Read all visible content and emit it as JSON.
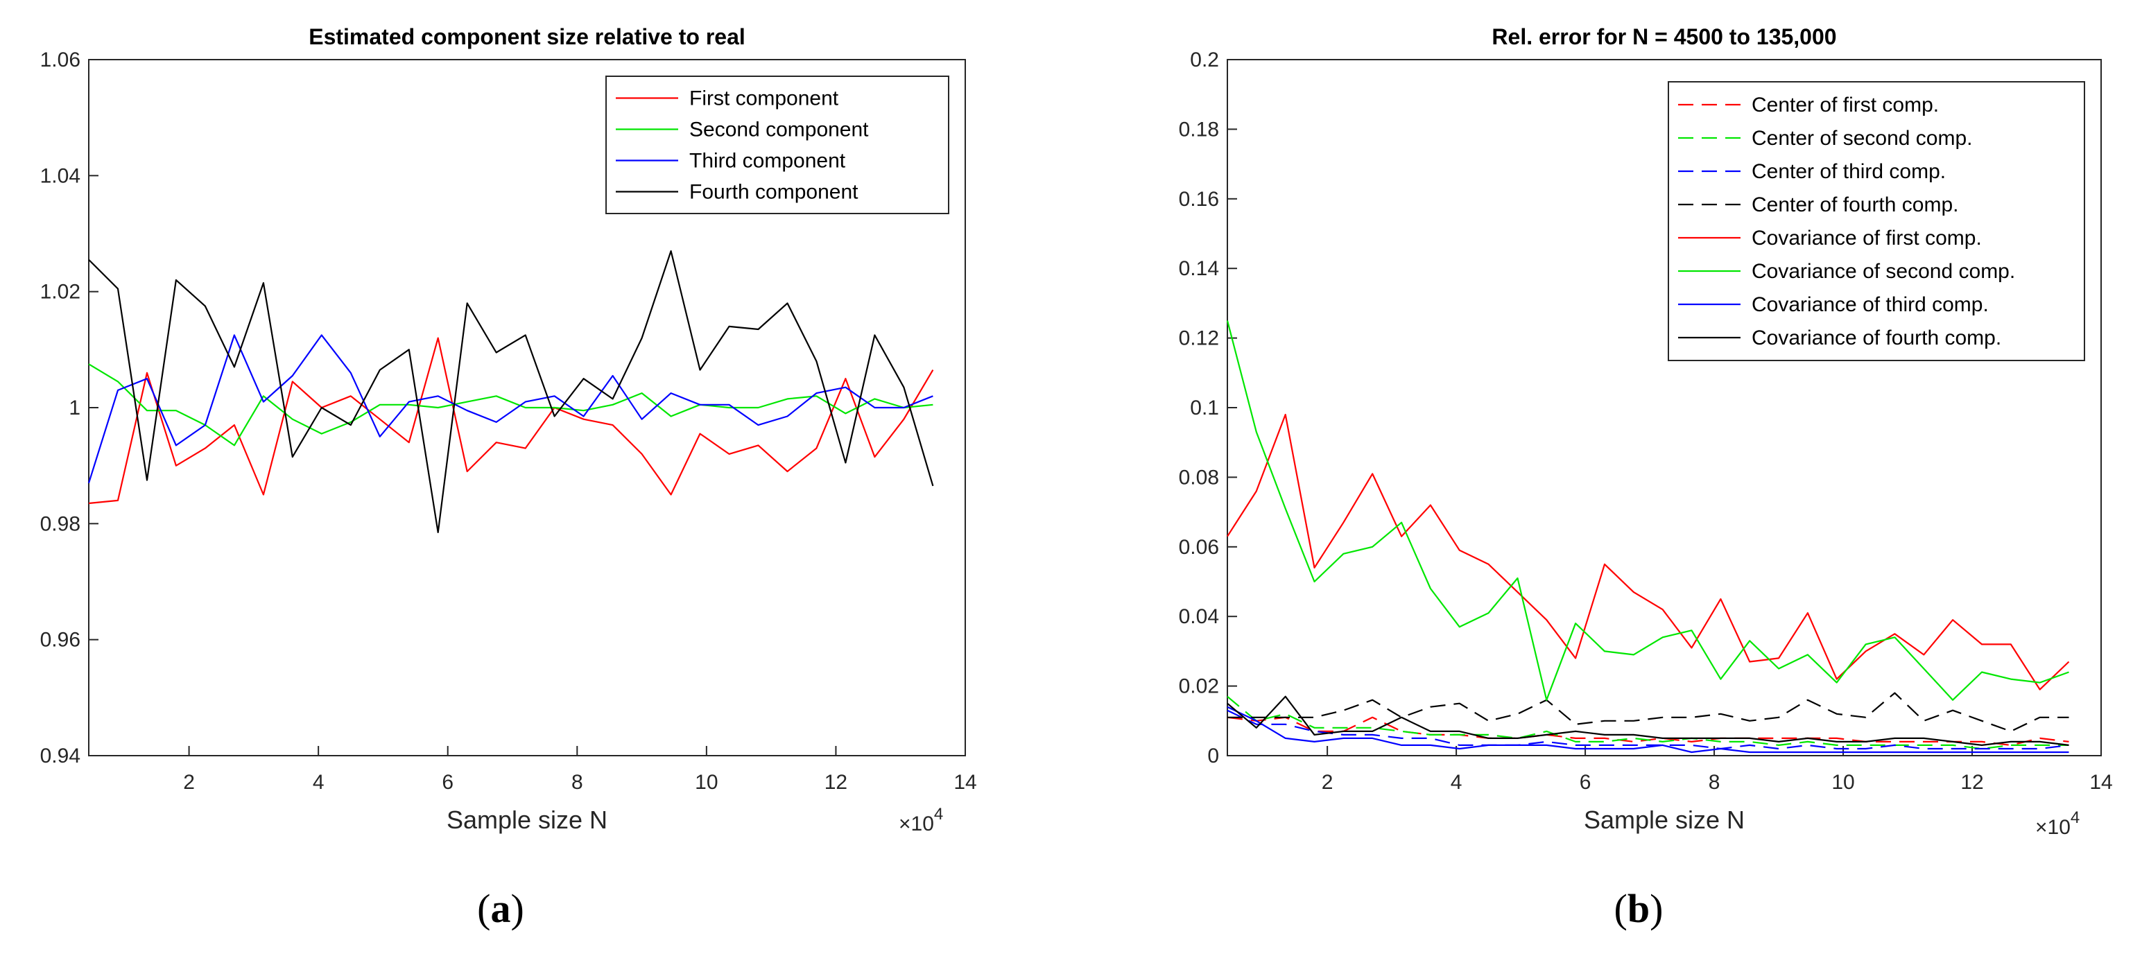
{
  "chart_data": [
    {
      "panel": "a",
      "type": "line",
      "title": "Estimated component size relative to real",
      "xlabel": "Sample size N",
      "ylabel": "",
      "x_exponent_label": "×10",
      "x_exponent_power": "4",
      "caption_label": "a",
      "xlim": [
        0.45,
        14
      ],
      "ylim": [
        0.94,
        1.06
      ],
      "xticks": [
        2,
        4,
        6,
        8,
        10,
        12,
        14
      ],
      "xtick_labels": [
        "2",
        "4",
        "6",
        "8",
        "10",
        "12",
        "14"
      ],
      "yticks": [
        0.94,
        0.96,
        0.98,
        1,
        1.02,
        1.04,
        1.06
      ],
      "ytick_labels": [
        "0.94",
        "0.96",
        "0.98",
        "1",
        "1.02",
        "1.04",
        "1.06"
      ],
      "legend_position": "top-right",
      "x": [
        0.45,
        0.9,
        1.35,
        1.8,
        2.25,
        2.7,
        3.15,
        3.6,
        4.05,
        4.5,
        4.95,
        5.4,
        5.85,
        6.3,
        6.75,
        7.2,
        7.65,
        8.1,
        8.55,
        9.0,
        9.45,
        9.9,
        10.35,
        10.8,
        11.25,
        11.7,
        12.15,
        12.6,
        13.05,
        13.5
      ],
      "series": [
        {
          "name": "First component",
          "color": "#ff0000",
          "dash": "solid",
          "values": [
            0.9835,
            0.984,
            1.006,
            0.99,
            0.993,
            0.997,
            0.985,
            1.0045,
            1.0,
            1.002,
            0.998,
            0.994,
            1.012,
            0.989,
            0.994,
            0.993,
            1.0,
            0.998,
            0.997,
            0.992,
            0.985,
            0.9955,
            0.992,
            0.9935,
            0.989,
            0.993,
            1.005,
            0.9915,
            0.998,
            1.0065
          ]
        },
        {
          "name": "Second component",
          "color": "#00e600",
          "dash": "solid",
          "values": [
            1.0075,
            1.0045,
            0.9995,
            0.9995,
            0.997,
            0.9935,
            1.002,
            0.998,
            0.9955,
            0.9975,
            1.0005,
            1.0005,
            1.0,
            1.001,
            1.002,
            1.0,
            1.0,
            0.9995,
            1.0005,
            1.0025,
            0.9985,
            1.0005,
            1.0,
            1.0,
            1.0015,
            1.002,
            0.999,
            1.0015,
            1.0,
            1.0005
          ]
        },
        {
          "name": "Third component",
          "color": "#0000ff",
          "dash": "solid",
          "values": [
            0.987,
            1.003,
            1.005,
            0.9935,
            0.997,
            1.0125,
            1.001,
            1.0055,
            1.0125,
            1.006,
            0.995,
            1.001,
            1.002,
            0.9995,
            0.9975,
            1.001,
            1.002,
            0.9985,
            1.0055,
            0.998,
            1.0025,
            1.0005,
            1.0005,
            0.997,
            0.9985,
            1.0025,
            1.0035,
            1.0,
            1.0,
            1.002
          ]
        },
        {
          "name": "Fourth component",
          "color": "#000000",
          "dash": "solid",
          "values": [
            1.0255,
            1.0205,
            0.9875,
            1.022,
            1.0175,
            1.007,
            1.0215,
            0.9915,
            1.0,
            0.997,
            1.0065,
            1.01,
            0.9785,
            1.018,
            1.0095,
            1.0125,
            0.9985,
            1.005,
            1.0015,
            1.012,
            1.027,
            1.0065,
            1.014,
            1.0135,
            1.018,
            1.008,
            0.9905,
            1.0125,
            1.0035,
            0.9865
          ]
        }
      ]
    },
    {
      "panel": "b",
      "type": "line",
      "title": "Rel.  error for N = 4500 to 135,000",
      "xlabel": "Sample size N",
      "ylabel": "",
      "x_exponent_label": "×10",
      "x_exponent_power": "4",
      "caption_label": "b",
      "xlim": [
        0.45,
        14
      ],
      "ylim": [
        0,
        0.2
      ],
      "xticks": [
        2,
        4,
        6,
        8,
        10,
        12,
        14
      ],
      "xtick_labels": [
        "2",
        "4",
        "6",
        "8",
        "10",
        "12",
        "14"
      ],
      "yticks": [
        0,
        0.02,
        0.04,
        0.06,
        0.08,
        0.1,
        0.12,
        0.14,
        0.16,
        0.18,
        0.2
      ],
      "ytick_labels": [
        "0",
        "0.02",
        "0.04",
        "0.06",
        "0.08",
        "0.1",
        "0.12",
        "0.14",
        "0.16",
        "0.18",
        "0.2"
      ],
      "legend_position": "top-right",
      "x": [
        0.45,
        0.9,
        1.35,
        1.8,
        2.25,
        2.7,
        3.15,
        3.6,
        4.05,
        4.5,
        4.95,
        5.4,
        5.85,
        6.3,
        6.75,
        7.2,
        7.65,
        8.1,
        8.55,
        9.0,
        9.45,
        9.9,
        10.35,
        10.8,
        11.25,
        11.7,
        12.15,
        12.6,
        13.05,
        13.5
      ],
      "series": [
        {
          "name": "Center of first comp.",
          "color": "#ff0000",
          "dash": "dashed",
          "values": [
            0.011,
            0.01,
            0.011,
            0.007,
            0.007,
            0.011,
            0.007,
            0.006,
            0.006,
            0.005,
            0.005,
            0.006,
            0.005,
            0.005,
            0.004,
            0.005,
            0.004,
            0.005,
            0.005,
            0.005,
            0.005,
            0.005,
            0.004,
            0.004,
            0.004,
            0.004,
            0.004,
            0.003,
            0.005,
            0.004
          ]
        },
        {
          "name": "Center of second comp.",
          "color": "#00e600",
          "dash": "dashed",
          "values": [
            0.017,
            0.01,
            0.012,
            0.008,
            0.008,
            0.008,
            0.007,
            0.006,
            0.006,
            0.006,
            0.005,
            0.007,
            0.004,
            0.004,
            0.005,
            0.004,
            0.005,
            0.004,
            0.004,
            0.003,
            0.004,
            0.003,
            0.003,
            0.003,
            0.003,
            0.003,
            0.002,
            0.003,
            0.003,
            0.003
          ]
        },
        {
          "name": "Center of third comp.",
          "color": "#0000ff",
          "dash": "dashed",
          "values": [
            0.013,
            0.009,
            0.009,
            0.007,
            0.006,
            0.006,
            0.005,
            0.005,
            0.003,
            0.003,
            0.003,
            0.004,
            0.003,
            0.003,
            0.003,
            0.003,
            0.003,
            0.002,
            0.003,
            0.002,
            0.003,
            0.002,
            0.002,
            0.003,
            0.002,
            0.002,
            0.002,
            0.002,
            0.002,
            0.003
          ]
        },
        {
          "name": "Center of fourth comp.",
          "color": "#000000",
          "dash": "dashed",
          "values": [
            0.011,
            0.011,
            0.011,
            0.011,
            0.013,
            0.016,
            0.011,
            0.014,
            0.015,
            0.01,
            0.012,
            0.016,
            0.009,
            0.01,
            0.01,
            0.011,
            0.011,
            0.012,
            0.01,
            0.011,
            0.016,
            0.012,
            0.011,
            0.018,
            0.01,
            0.013,
            0.01,
            0.007,
            0.011,
            0.011
          ]
        },
        {
          "name": "Covariance of first comp.",
          "color": "#ff0000",
          "dash": "solid",
          "values": [
            0.063,
            0.076,
            0.098,
            0.054,
            0.067,
            0.081,
            0.063,
            0.072,
            0.059,
            0.055,
            0.047,
            0.039,
            0.028,
            0.055,
            0.047,
            0.042,
            0.031,
            0.045,
            0.027,
            0.028,
            0.041,
            0.022,
            0.03,
            0.035,
            0.029,
            0.039,
            0.032,
            0.032,
            0.019,
            0.027
          ]
        },
        {
          "name": "Covariance of second comp.",
          "color": "#00e600",
          "dash": "solid",
          "values": [
            0.125,
            0.093,
            0.071,
            0.05,
            0.058,
            0.06,
            0.067,
            0.048,
            0.037,
            0.041,
            0.051,
            0.016,
            0.038,
            0.03,
            0.029,
            0.034,
            0.036,
            0.022,
            0.033,
            0.025,
            0.029,
            0.021,
            0.032,
            0.034,
            0.025,
            0.016,
            0.024,
            0.022,
            0.021,
            0.024
          ]
        },
        {
          "name": "Covariance of third comp.",
          "color": "#0000ff",
          "dash": "solid",
          "values": [
            0.014,
            0.01,
            0.005,
            0.004,
            0.005,
            0.005,
            0.003,
            0.003,
            0.002,
            0.003,
            0.003,
            0.003,
            0.002,
            0.002,
            0.002,
            0.003,
            0.001,
            0.002,
            0.001,
            0.001,
            0.001,
            0.001,
            0.001,
            0.001,
            0.001,
            0.001,
            0.001,
            0.001,
            0.001,
            0.001
          ]
        },
        {
          "name": "Covariance of fourth comp.",
          "color": "#000000",
          "dash": "solid",
          "values": [
            0.015,
            0.008,
            0.017,
            0.006,
            0.007,
            0.007,
            0.011,
            0.007,
            0.007,
            0.005,
            0.005,
            0.006,
            0.007,
            0.006,
            0.006,
            0.005,
            0.005,
            0.005,
            0.005,
            0.004,
            0.005,
            0.004,
            0.004,
            0.005,
            0.005,
            0.004,
            0.003,
            0.004,
            0.004,
            0.003
          ]
        }
      ]
    }
  ]
}
